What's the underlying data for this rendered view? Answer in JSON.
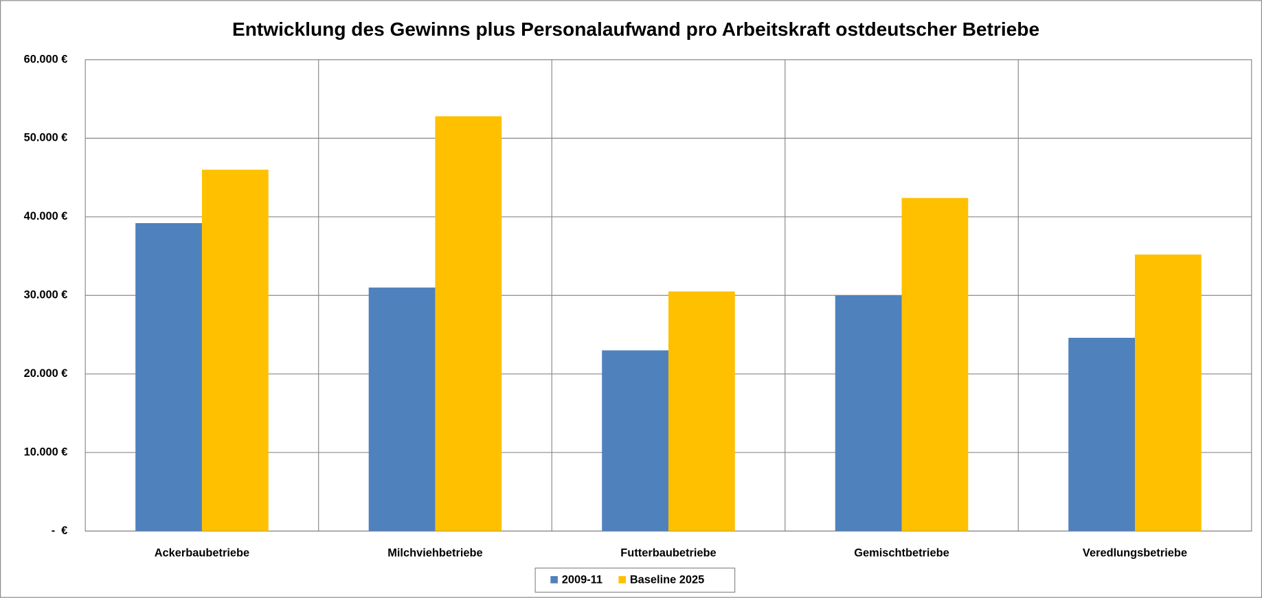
{
  "chart_data": {
    "type": "bar",
    "title": "Entwicklung des Gewinns plus Personalaufwand pro Arbeitskraft ostdeutscher Betriebe",
    "categories": [
      "Ackerbaubetriebe",
      "Milchviehbetriebe",
      "Futterbaubetriebe",
      "Gemischtbetriebe",
      "Veredlungsbetriebe"
    ],
    "series": [
      {
        "name": "2009-11",
        "color": "#4f81bd",
        "values": [
          39200,
          31000,
          23000,
          30000,
          24600
        ]
      },
      {
        "name": "Baseline 2025",
        "color": "#ffc000",
        "values": [
          46000,
          52800,
          30500,
          42400,
          35200
        ]
      }
    ],
    "ylim": [
      0,
      60000
    ],
    "yticks": [
      {
        "value": 0,
        "label": "-  €"
      },
      {
        "value": 10000,
        "label": "10.000 €"
      },
      {
        "value": 20000,
        "label": "20.000 €"
      },
      {
        "value": 30000,
        "label": "30.000 €"
      },
      {
        "value": 40000,
        "label": "40.000 €"
      },
      {
        "value": 50000,
        "label": "50.000 €"
      },
      {
        "value": 60000,
        "label": "60.000 €"
      }
    ],
    "grid": true,
    "legend": "bottom"
  }
}
